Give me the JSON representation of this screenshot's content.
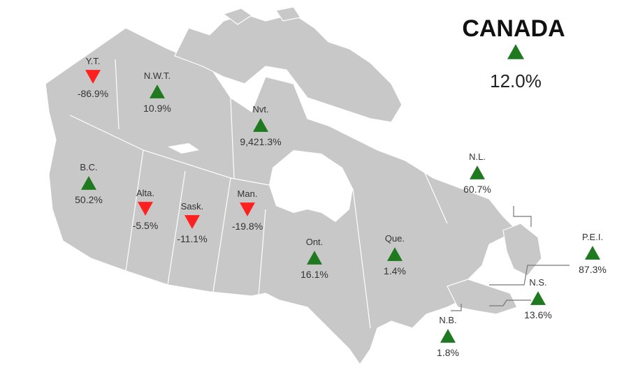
{
  "title": "CANADA",
  "national": {
    "value": "12.0%",
    "direction": "up"
  },
  "colors": {
    "up": "#1f7a1f",
    "down": "#ff2020",
    "land": "#c8c8c8"
  },
  "regions": [
    {
      "id": "yt",
      "abbr": "Y.T.",
      "value": "-86.9%",
      "direction": "down"
    },
    {
      "id": "nwt",
      "abbr": "N.W.T.",
      "value": "10.9%",
      "direction": "up"
    },
    {
      "id": "nvt",
      "abbr": "Nvt.",
      "value": "9,421.3%",
      "direction": "up"
    },
    {
      "id": "bc",
      "abbr": "B.C.",
      "value": "50.2%",
      "direction": "up"
    },
    {
      "id": "ab",
      "abbr": "Alta.",
      "value": "-5.5%",
      "direction": "down"
    },
    {
      "id": "sk",
      "abbr": "Sask.",
      "value": "-11.1%",
      "direction": "down"
    },
    {
      "id": "mb",
      "abbr": "Man.",
      "value": "-19.8%",
      "direction": "down"
    },
    {
      "id": "on",
      "abbr": "Ont.",
      "value": "16.1%",
      "direction": "up"
    },
    {
      "id": "qc",
      "abbr": "Que.",
      "value": "1.4%",
      "direction": "up"
    },
    {
      "id": "nl",
      "abbr": "N.L.",
      "value": "60.7%",
      "direction": "up"
    },
    {
      "id": "pei",
      "abbr": "P.E.I.",
      "value": "87.3%",
      "direction": "up"
    },
    {
      "id": "ns",
      "abbr": "N.S.",
      "value": "13.6%",
      "direction": "up"
    },
    {
      "id": "nb",
      "abbr": "N.B.",
      "value": "1.8%",
      "direction": "up"
    }
  ]
}
